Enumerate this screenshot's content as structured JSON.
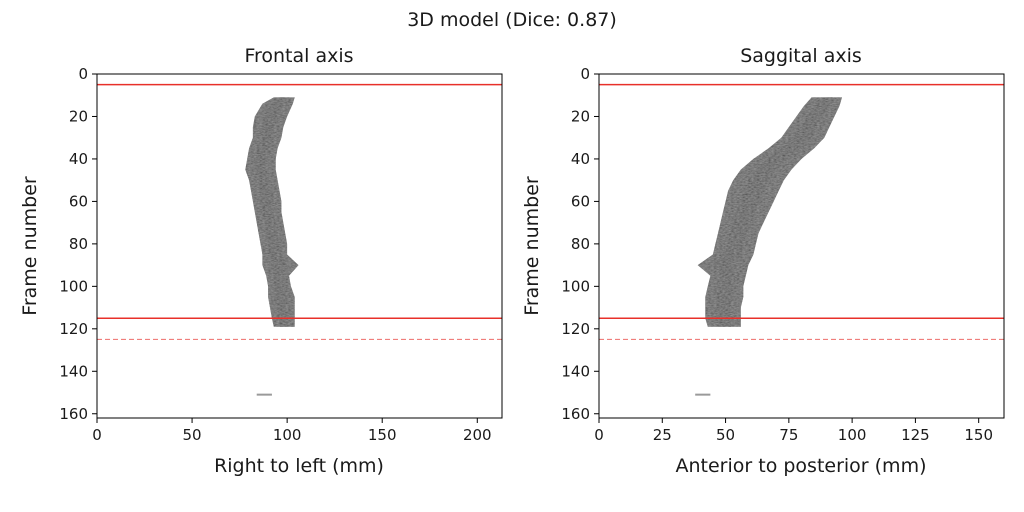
{
  "figure": {
    "title": "3D model (Dice: 0.87)"
  },
  "chart_data": [
    {
      "type": "heatmap",
      "title": "Frontal axis",
      "xlabel": "Right to left (mm)",
      "ylabel": "Frame number",
      "xlim": [
        0,
        213
      ],
      "ylim": [
        162,
        0
      ],
      "y_inverted": true,
      "grid": false,
      "x_ticks": [
        0,
        50,
        100,
        150,
        200
      ],
      "y_ticks": [
        0,
        20,
        40,
        60,
        80,
        100,
        120,
        140,
        160
      ],
      "solid_lines": [
        5,
        115
      ],
      "dashed_lines": [
        125
      ],
      "line_color": "#e8302a",
      "blob": [
        {
          "frame": 11,
          "left": 93,
          "right": 104
        },
        {
          "frame": 14,
          "left": 87,
          "right": 103
        },
        {
          "frame": 20,
          "left": 83,
          "right": 100
        },
        {
          "frame": 25,
          "left": 82,
          "right": 98
        },
        {
          "frame": 30,
          "left": 82,
          "right": 97
        },
        {
          "frame": 35,
          "left": 80,
          "right": 95
        },
        {
          "frame": 40,
          "left": 79,
          "right": 94
        },
        {
          "frame": 45,
          "left": 78,
          "right": 94
        },
        {
          "frame": 50,
          "left": 80,
          "right": 95
        },
        {
          "frame": 55,
          "left": 81,
          "right": 96
        },
        {
          "frame": 60,
          "left": 82,
          "right": 97
        },
        {
          "frame": 65,
          "left": 83,
          "right": 97
        },
        {
          "frame": 70,
          "left": 84,
          "right": 98
        },
        {
          "frame": 75,
          "left": 85,
          "right": 99
        },
        {
          "frame": 80,
          "left": 86,
          "right": 100
        },
        {
          "frame": 85,
          "left": 87,
          "right": 100
        },
        {
          "frame": 90,
          "left": 87,
          "right": 106
        },
        {
          "frame": 95,
          "left": 89,
          "right": 101
        },
        {
          "frame": 100,
          "left": 90,
          "right": 102
        },
        {
          "frame": 105,
          "left": 90,
          "right": 104
        },
        {
          "frame": 110,
          "left": 91,
          "right": 104
        },
        {
          "frame": 115,
          "left": 92,
          "right": 104
        },
        {
          "frame": 119,
          "left": 93,
          "right": 104
        }
      ],
      "speck": {
        "frame": 151,
        "x0": 84,
        "x1": 92
      }
    },
    {
      "type": "heatmap",
      "title": "Saggital axis",
      "xlabel": "Anterior to posterior (mm)",
      "ylabel": "Frame number",
      "xlim": [
        0,
        160
      ],
      "ylim": [
        162,
        0
      ],
      "y_inverted": true,
      "grid": false,
      "x_ticks": [
        0,
        25,
        50,
        75,
        100,
        125,
        150
      ],
      "y_ticks": [
        0,
        20,
        40,
        60,
        80,
        100,
        120,
        140,
        160
      ],
      "solid_lines": [
        5,
        115
      ],
      "dashed_lines": [
        125
      ],
      "line_color": "#e8302a",
      "blob": [
        {
          "frame": 11,
          "left": 84,
          "right": 96
        },
        {
          "frame": 15,
          "left": 81,
          "right": 95
        },
        {
          "frame": 20,
          "left": 78,
          "right": 93
        },
        {
          "frame": 25,
          "left": 75,
          "right": 91
        },
        {
          "frame": 30,
          "left": 72,
          "right": 89
        },
        {
          "frame": 35,
          "left": 67,
          "right": 85
        },
        {
          "frame": 40,
          "left": 61,
          "right": 80
        },
        {
          "frame": 45,
          "left": 56,
          "right": 76
        },
        {
          "frame": 50,
          "left": 53,
          "right": 73
        },
        {
          "frame": 55,
          "left": 51,
          "right": 71
        },
        {
          "frame": 60,
          "left": 50,
          "right": 69
        },
        {
          "frame": 65,
          "left": 49,
          "right": 67
        },
        {
          "frame": 70,
          "left": 48,
          "right": 65
        },
        {
          "frame": 75,
          "left": 47,
          "right": 63
        },
        {
          "frame": 80,
          "left": 46,
          "right": 62
        },
        {
          "frame": 85,
          "left": 45,
          "right": 61
        },
        {
          "frame": 90,
          "left": 39,
          "right": 59
        },
        {
          "frame": 95,
          "left": 44,
          "right": 58
        },
        {
          "frame": 100,
          "left": 43,
          "right": 57
        },
        {
          "frame": 105,
          "left": 42,
          "right": 57
        },
        {
          "frame": 110,
          "left": 42,
          "right": 56
        },
        {
          "frame": 115,
          "left": 42,
          "right": 56
        },
        {
          "frame": 119,
          "left": 43,
          "right": 56
        }
      ],
      "speck": {
        "frame": 151,
        "x0": 38,
        "x1": 44
      }
    }
  ]
}
